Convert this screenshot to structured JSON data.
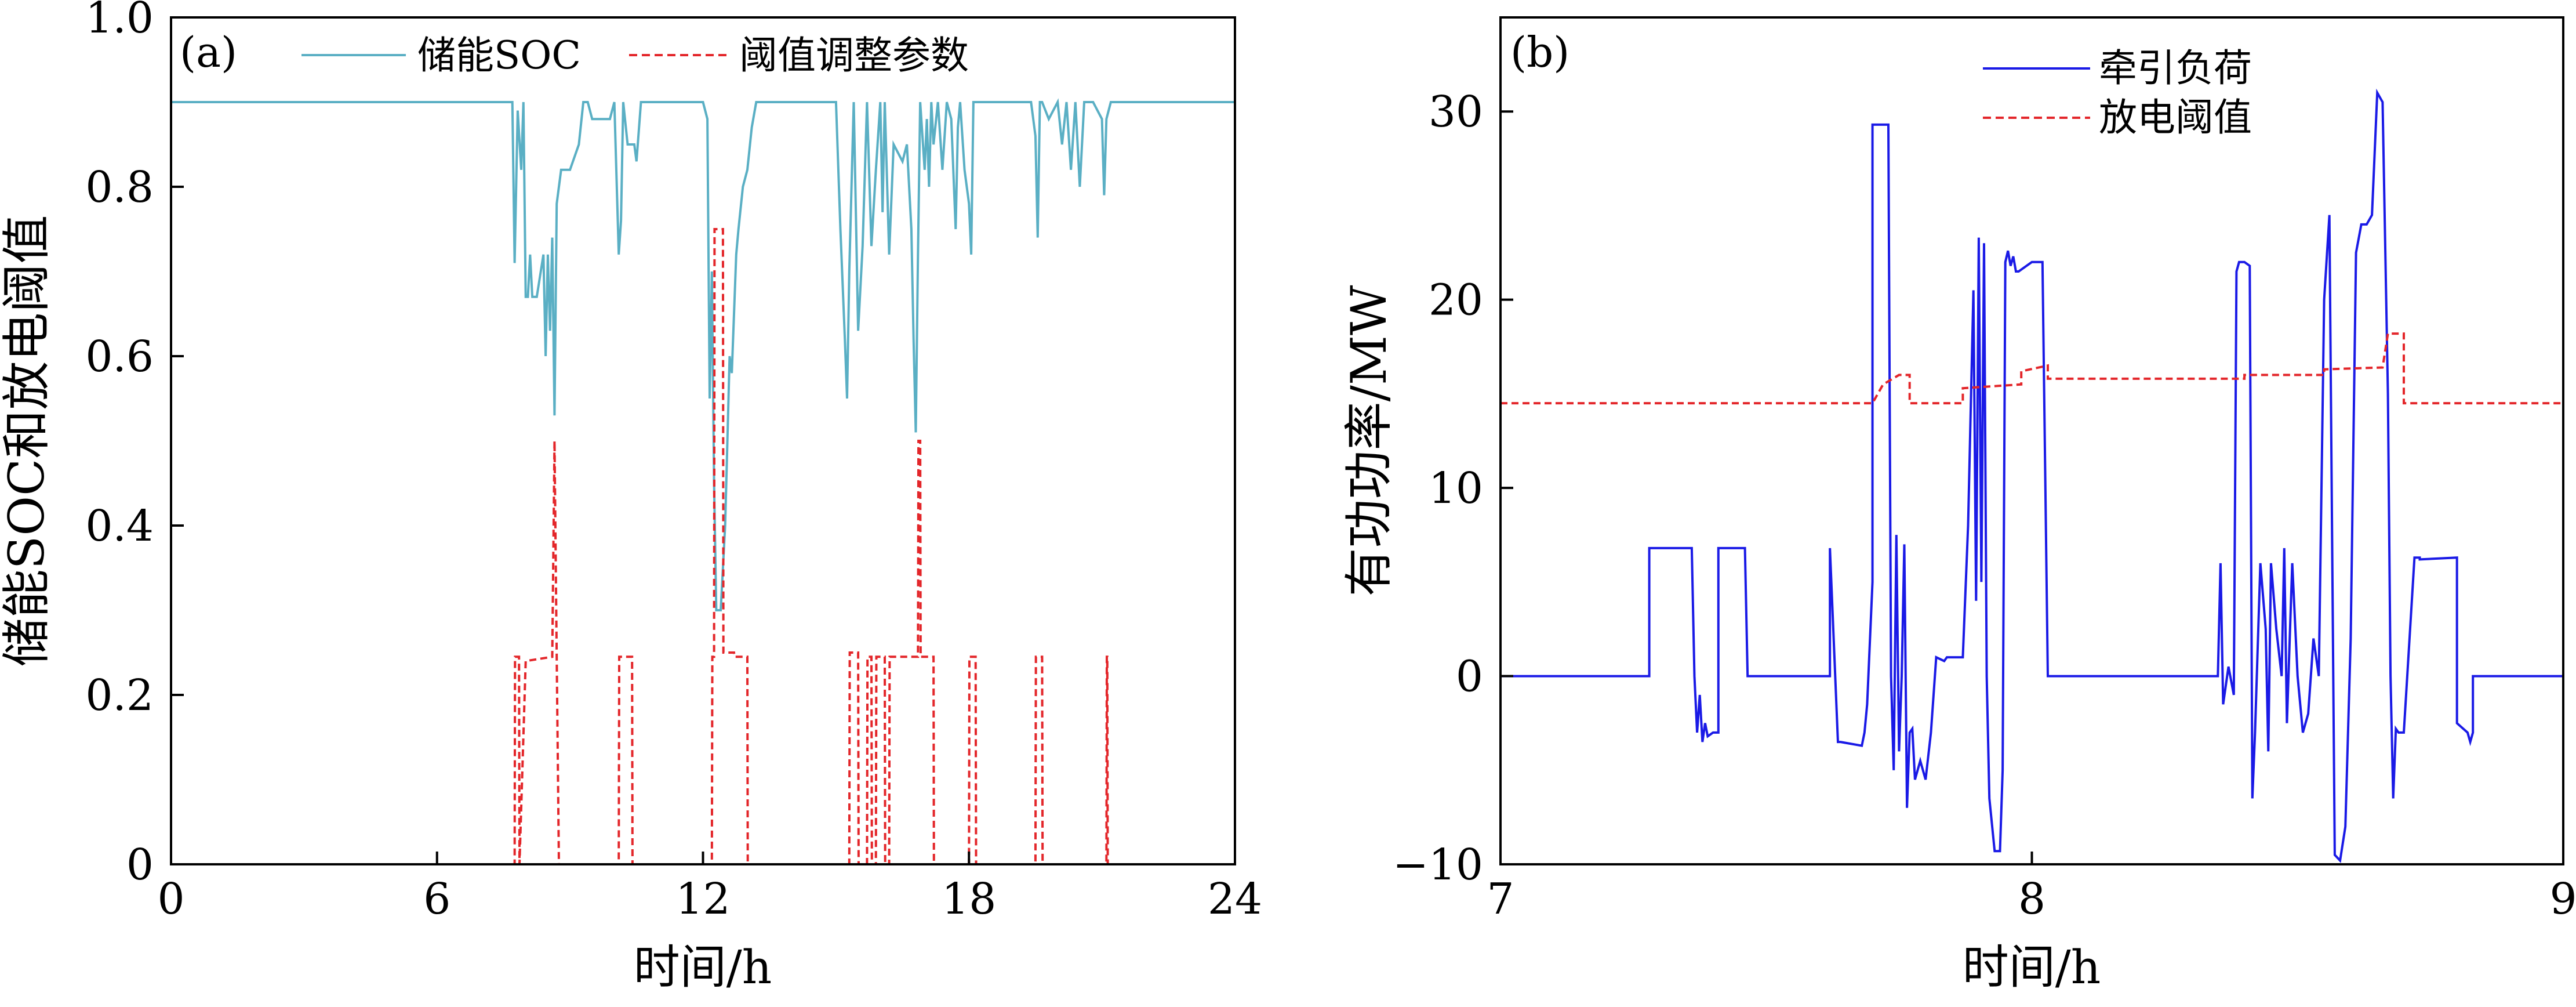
{
  "chart_data": [
    {
      "type": "line",
      "panel_label": "(a)",
      "title": "",
      "xlabel": "时间/h",
      "ylabel": "储能SOC和放电阈值",
      "xlim": [
        0,
        24
      ],
      "ylim": [
        0,
        1.0
      ],
      "xticks": [
        0,
        6,
        12,
        18,
        24
      ],
      "yticks": [
        0,
        0.2,
        0.4,
        0.6,
        0.8,
        1.0
      ],
      "xtick_labels": [
        "0",
        "6",
        "12",
        "18",
        "24"
      ],
      "ytick_labels": [
        "0",
        "0.2",
        "0.4",
        "0.6",
        "0.8",
        "1.0"
      ],
      "grid": false,
      "legend_position": "top",
      "colors": {
        "soc": "#5aafc4",
        "threshold": "#e3262a",
        "axis": "#000000"
      },
      "series": [
        {
          "name": "储能SOC",
          "style": "solid",
          "x": [
            0,
            7.7,
            7.75,
            7.82,
            7.9,
            7.95,
            8.0,
            8.05,
            8.1,
            8.15,
            8.25,
            8.4,
            8.45,
            8.5,
            8.55,
            8.6,
            8.65,
            8.7,
            8.8,
            9.0,
            9.2,
            9.3,
            9.4,
            9.5,
            9.7,
            9.9,
            10.0,
            10.1,
            10.15,
            10.2,
            10.3,
            10.45,
            10.5,
            10.6,
            10.7,
            11.0,
            11.5,
            12.0,
            12.1,
            12.15,
            12.2,
            12.25,
            12.3,
            12.4,
            12.5,
            12.55,
            12.6,
            12.65,
            12.75,
            12.8,
            12.9,
            13.0,
            13.1,
            13.2,
            13.4,
            13.6,
            14.0,
            14.5,
            15.0,
            15.1,
            15.2,
            15.25,
            15.3,
            15.4,
            15.5,
            15.6,
            15.7,
            15.8,
            15.9,
            16.0,
            16.05,
            16.1,
            16.2,
            16.3,
            16.5,
            16.6,
            16.7,
            16.75,
            16.8,
            16.85,
            16.9,
            17.0,
            17.05,
            17.1,
            17.15,
            17.2,
            17.3,
            17.4,
            17.5,
            17.6,
            17.7,
            17.75,
            17.8,
            17.9,
            18.0,
            18.05,
            18.1,
            18.2,
            18.4,
            18.6,
            18.8,
            19.0,
            19.2,
            19.4,
            19.5,
            19.55,
            19.6,
            19.65,
            19.8,
            20.0,
            20.1,
            20.2,
            20.3,
            20.4,
            20.5,
            20.6,
            20.8,
            21.0,
            21.05,
            21.1,
            21.2,
            21.3,
            21.4,
            21.5,
            21.6,
            22.0,
            24.0
          ],
          "values": [
            0.9,
            0.9,
            0.71,
            0.89,
            0.82,
            0.9,
            0.67,
            0.67,
            0.72,
            0.67,
            0.67,
            0.72,
            0.6,
            0.72,
            0.63,
            0.74,
            0.53,
            0.78,
            0.82,
            0.82,
            0.85,
            0.9,
            0.9,
            0.88,
            0.88,
            0.88,
            0.9,
            0.72,
            0.76,
            0.9,
            0.85,
            0.85,
            0.83,
            0.9,
            0.9,
            0.9,
            0.9,
            0.9,
            0.88,
            0.55,
            0.7,
            0.45,
            0.3,
            0.3,
            0.4,
            0.5,
            0.6,
            0.58,
            0.72,
            0.75,
            0.8,
            0.82,
            0.87,
            0.9,
            0.9,
            0.9,
            0.9,
            0.9,
            0.9,
            0.75,
            0.62,
            0.55,
            0.7,
            0.9,
            0.63,
            0.73,
            0.9,
            0.73,
            0.82,
            0.9,
            0.77,
            0.9,
            0.72,
            0.85,
            0.83,
            0.85,
            0.75,
            0.62,
            0.51,
            0.72,
            0.9,
            0.82,
            0.88,
            0.8,
            0.9,
            0.85,
            0.9,
            0.82,
            0.9,
            0.88,
            0.75,
            0.87,
            0.9,
            0.82,
            0.78,
            0.72,
            0.9,
            0.9,
            0.9,
            0.9,
            0.9,
            0.9,
            0.9,
            0.9,
            0.86,
            0.74,
            0.9,
            0.9,
            0.88,
            0.9,
            0.85,
            0.9,
            0.82,
            0.9,
            0.8,
            0.9,
            0.9,
            0.88,
            0.79,
            0.88,
            0.9,
            0.9,
            0.9,
            0.9,
            0.9,
            0.9,
            0.9
          ]
        },
        {
          "name": "阈值调整参数",
          "style": "dashed",
          "x": [
            0,
            7.75,
            7.76,
            7.85,
            7.86,
            8.0,
            8.6,
            8.65,
            8.7,
            8.75,
            8.8,
            10.1,
            10.11,
            10.4,
            10.41,
            12.2,
            12.21,
            12.25,
            12.26,
            12.45,
            12.46,
            12.7,
            12.71,
            13.0,
            13.01,
            15.3,
            15.31,
            15.5,
            15.51,
            15.7,
            15.71,
            15.8,
            15.81,
            15.9,
            15.91,
            16.1,
            16.11,
            16.2,
            16.21,
            16.85,
            16.86,
            16.9,
            16.91,
            17.2,
            17.21,
            18.0,
            18.01,
            18.15,
            18.16,
            19.5,
            19.51,
            19.65,
            19.66,
            21.1,
            21.11,
            21.12,
            21.13,
            24.0
          ],
          "values": [
            0,
            0,
            0.245,
            0.245,
            0,
            0.24,
            0.245,
            0.5,
            0.245,
            0,
            0,
            0,
            0.245,
            0.245,
            0,
            0,
            0.245,
            0.245,
            0.75,
            0.75,
            0.25,
            0.25,
            0.245,
            0.245,
            0,
            0,
            0.25,
            0.25,
            0,
            0,
            0.245,
            0.245,
            0,
            0,
            0.245,
            0.245,
            0,
            0,
            0.245,
            0.245,
            0.5,
            0.5,
            0.245,
            0.245,
            0,
            0,
            0.245,
            0.245,
            0,
            0,
            0.245,
            0.245,
            0,
            0,
            0.245,
            0.245,
            0,
            0
          ]
        }
      ]
    },
    {
      "type": "line",
      "panel_label": "(b)",
      "title": "",
      "xlabel": "时间/h",
      "ylabel": "有功功率/MW",
      "xlim": [
        7,
        9
      ],
      "ylim": [
        -10,
        35
      ],
      "xticks": [
        7,
        8,
        9
      ],
      "yticks": [
        -10,
        0,
        10,
        20,
        30
      ],
      "xtick_labels": [
        "7",
        "8",
        "9"
      ],
      "ytick_labels": [
        "−10",
        "0",
        "10",
        "20",
        "30"
      ],
      "grid": false,
      "legend_position": "top-right",
      "colors": {
        "load": "#1a1ae6",
        "threshold": "#e3262a",
        "axis": "#000000"
      },
      "series": [
        {
          "name": "牵引负荷",
          "style": "solid",
          "x": [
            7.0,
            7.28,
            7.28,
            7.36,
            7.365,
            7.37,
            7.375,
            7.38,
            7.385,
            7.39,
            7.4,
            7.41,
            7.41,
            7.46,
            7.465,
            7.62,
            7.62,
            7.635,
            7.64,
            7.68,
            7.685,
            7.69,
            7.7,
            7.7,
            7.73,
            7.735,
            7.74,
            7.745,
            7.75,
            7.755,
            7.76,
            7.765,
            7.77,
            7.775,
            7.78,
            7.79,
            7.8,
            7.81,
            7.82,
            7.835,
            7.84,
            7.87,
            7.88,
            7.89,
            7.895,
            7.9,
            7.905,
            7.91,
            7.915,
            7.92,
            7.93,
            7.94,
            7.945,
            7.95,
            7.955,
            7.96,
            7.965,
            7.97,
            7.975,
            8.0,
            8.02,
            8.03,
            8.03,
            8.35,
            8.355,
            8.36,
            8.37,
            8.38,
            8.385,
            8.39,
            8.4,
            8.41,
            8.415,
            8.42,
            8.43,
            8.44,
            8.445,
            8.45,
            8.46,
            8.47,
            8.475,
            8.48,
            8.49,
            8.5,
            8.51,
            8.52,
            8.53,
            8.54,
            8.55,
            8.56,
            8.57,
            8.58,
            8.59,
            8.6,
            8.61,
            8.62,
            8.63,
            8.64,
            8.65,
            8.66,
            8.67,
            8.675,
            8.68,
            8.685,
            8.69,
            8.7,
            8.72,
            8.73,
            8.73,
            8.8,
            8.8,
            8.82,
            8.825,
            8.83,
            8.83,
            9.0
          ],
          "values": [
            0,
            0,
            6.8,
            6.8,
            0,
            -3,
            -1,
            -3.5,
            -2.5,
            -3.2,
            -3,
            -3,
            6.8,
            6.8,
            0,
            0,
            6.8,
            -3.5,
            -3.5,
            -3.7,
            -3,
            -1.5,
            5,
            29.3,
            29.3,
            0,
            -5,
            7.5,
            -4,
            0,
            7,
            -7,
            -3,
            -2.8,
            -5.5,
            -4.5,
            -5.5,
            -3,
            1,
            0.8,
            1,
            1,
            8,
            20.5,
            4,
            23.3,
            5,
            23,
            0,
            -6.5,
            -9.3,
            -9.3,
            -5,
            22,
            22.6,
            21.8,
            22.3,
            21.5,
            21.5,
            22,
            22,
            0,
            0,
            0,
            6,
            -1.5,
            0.5,
            -1,
            21.5,
            22,
            22,
            21.8,
            -6.5,
            -3,
            6,
            2.5,
            -4,
            6,
            2.5,
            0,
            6.8,
            -2.5,
            6,
            0,
            -3,
            -2,
            2,
            0,
            20,
            24.5,
            -9.5,
            -9.8,
            -8,
            2,
            22.5,
            24,
            24,
            24.5,
            31,
            30.5,
            15,
            0,
            -6.5,
            -2.8,
            -3,
            -3,
            6.3,
            6.3,
            6.2,
            6.3,
            -2.5,
            -3,
            -3.5,
            -3,
            0,
            0
          ]
        },
        {
          "name": "放电阈值",
          "style": "dashed",
          "x": [
            7.0,
            7.7,
            7.72,
            7.75,
            7.77,
            7.77,
            7.87,
            7.87,
            7.98,
            7.98,
            8.03,
            8.03,
            8.4,
            8.4,
            8.55,
            8.55,
            8.66,
            8.67,
            8.7,
            8.7,
            9.0
          ],
          "values": [
            14.5,
            14.5,
            15.5,
            16,
            16,
            14.5,
            14.5,
            15.3,
            15.5,
            16.2,
            16.5,
            15.8,
            15.8,
            16,
            16,
            16.3,
            16.4,
            18.2,
            18.2,
            14.5,
            14.5
          ]
        }
      ]
    }
  ]
}
